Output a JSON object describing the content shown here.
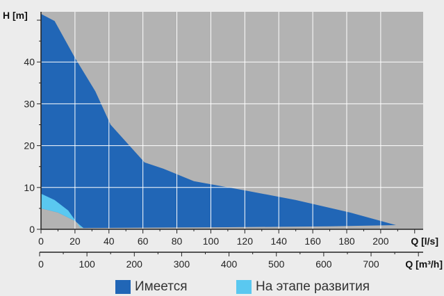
{
  "chart_data": {
    "type": "area",
    "plot_background": "#b3b3b3",
    "ylabel": "H [m]",
    "xlabel_primary": "Q [l/s]",
    "xlabel_secondary": "Q [m³/h]",
    "ylim": [
      0,
      52
    ],
    "xlim_ls": [
      0,
      225
    ],
    "yticks": [
      0,
      10,
      20,
      30,
      40
    ],
    "xticks_ls": [
      0,
      20,
      40,
      60,
      80,
      100,
      120,
      140,
      160,
      180,
      200
    ],
    "xlim_m3h": [
      0,
      810
    ],
    "xticks_m3h": [
      0,
      100,
      200,
      300,
      400,
      500,
      600,
      700
    ],
    "grid": true,
    "series": [
      {
        "name": "Имеется",
        "color": "#2166b6",
        "upper": [
          [
            0,
            51.5
          ],
          [
            8,
            49.8
          ],
          [
            20,
            41
          ],
          [
            32,
            33
          ],
          [
            41,
            25
          ],
          [
            61,
            16
          ],
          [
            72,
            14.5
          ],
          [
            90,
            11.5
          ],
          [
            120,
            9.3
          ],
          [
            150,
            7
          ],
          [
            182,
            4
          ],
          [
            209,
            1
          ]
        ],
        "lower": [
          [
            0,
            5
          ],
          [
            10,
            4
          ],
          [
            20,
            2
          ],
          [
            25,
            0.3
          ],
          [
            110,
            0.5
          ],
          [
            170,
            0.7
          ],
          [
            209,
            1
          ]
        ]
      },
      {
        "name": "На этапе развития",
        "color": "#5ac8f0",
        "upper": [
          [
            0,
            8.5
          ],
          [
            8,
            7
          ],
          [
            16,
            4.5
          ],
          [
            23,
            0.5
          ],
          [
            25,
            0.3
          ]
        ],
        "lower": [
          [
            0,
            5
          ],
          [
            10,
            4
          ],
          [
            20,
            2
          ],
          [
            25,
            0.3
          ]
        ]
      }
    ],
    "legend_position": "bottom"
  }
}
